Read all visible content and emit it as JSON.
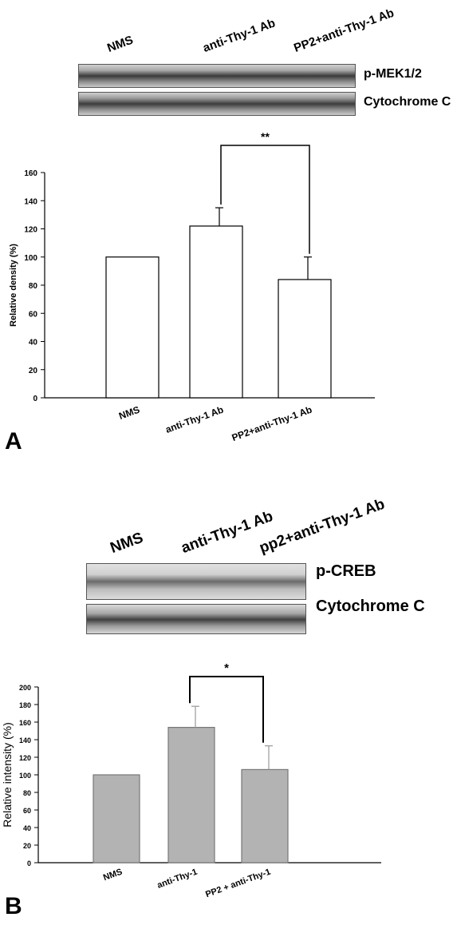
{
  "panels": [
    {
      "letter": "A",
      "blot": {
        "lane_labels": [
          "NMS",
          "anti-Thy-1 Ab",
          "PP2+anti-Thy-1 Ab"
        ],
        "band_labels": [
          "p-MEK1/2",
          "Cytochrome C"
        ]
      },
      "significance": "**"
    },
    {
      "letter": "B",
      "blot": {
        "lane_labels": [
          "NMS",
          "anti-Thy-1 Ab",
          "pp2+anti-Thy-1 Ab"
        ],
        "band_labels": [
          "p-CREB",
          "Cytochrome C"
        ]
      },
      "significance": "*"
    }
  ],
  "chart_data": [
    {
      "type": "bar",
      "categories": [
        "NMS",
        "anti-Thy-1 Ab",
        "PP2+anti-Thy-1 Ab"
      ],
      "values": [
        100,
        122,
        84
      ],
      "error": [
        0,
        13,
        16
      ],
      "ylabel": "Relative density (%)",
      "xlabel": "",
      "ylim": [
        0,
        160
      ],
      "yticks": [
        0,
        20,
        40,
        60,
        80,
        100,
        120,
        140,
        160
      ],
      "bar_color": "#ffffff",
      "grid": false,
      "significance": {
        "between": [
          1,
          2
        ],
        "label": "**"
      }
    },
    {
      "type": "bar",
      "categories": [
        "NMS",
        "anti-Thy-1",
        "PP2 + anti-Thy-1"
      ],
      "values": [
        100,
        154,
        106
      ],
      "error": [
        0,
        24,
        27
      ],
      "ylabel": "Relative intensity (%)",
      "xlabel": "",
      "ylim": [
        0,
        200
      ],
      "yticks": [
        0,
        20,
        40,
        60,
        80,
        100,
        120,
        140,
        160,
        180,
        200
      ],
      "bar_color": "#b3b3b3",
      "grid": false,
      "significance": {
        "between": [
          1,
          2
        ],
        "label": "*"
      }
    }
  ]
}
